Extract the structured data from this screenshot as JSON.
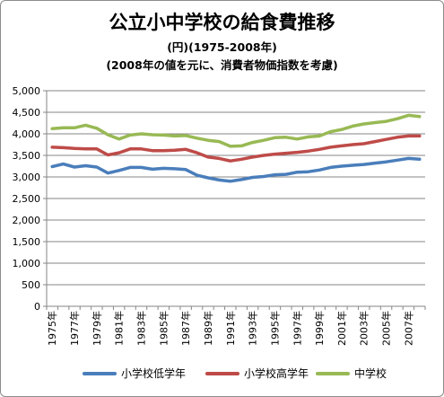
{
  "title": "公立小中学校の給食費推移",
  "subtitle_1": "(円)(1975-2008年)",
  "subtitle_2": "(2008年の値を元に、消費者物価指数を考慮)",
  "chart_data": {
    "type": "line",
    "title": "公立小中学校の給食費推移",
    "ylim": [
      0,
      5000
    ],
    "y_ticks": [
      "0",
      "500",
      "1,000",
      "1,500",
      "2,000",
      "2,500",
      "3,000",
      "3,500",
      "4,000",
      "4,500",
      "5,000"
    ],
    "grid": true,
    "legend_position": "bottom",
    "x": [
      "1975年",
      "1976年",
      "1977年",
      "1978年",
      "1979年",
      "1980年",
      "1981年",
      "1982年",
      "1983年",
      "1984年",
      "1985年",
      "1986年",
      "1987年",
      "1988年",
      "1989年",
      "1990年",
      "1991年",
      "1992年",
      "1993年",
      "1994年",
      "1995年",
      "1996年",
      "1997年",
      "1998年",
      "1999年",
      "2000年",
      "2001年",
      "2002年",
      "2003年",
      "2004年",
      "2005年",
      "2006年",
      "2007年",
      "2008年"
    ],
    "x_tick_labels": [
      "1975年",
      "1977年",
      "1979年",
      "1981年",
      "1983年",
      "1985年",
      "1987年",
      "1989年",
      "1991年",
      "1993年",
      "1995年",
      "1997年",
      "1999年",
      "2001年",
      "2003年",
      "2005年",
      "2007年"
    ],
    "series": [
      {
        "name": "小学校低学年",
        "color": "#4a7ebb",
        "values": [
          3240,
          3300,
          3230,
          3260,
          3230,
          3090,
          3150,
          3220,
          3220,
          3180,
          3200,
          3190,
          3170,
          3040,
          2980,
          2930,
          2900,
          2940,
          2990,
          3010,
          3050,
          3060,
          3110,
          3120,
          3160,
          3220,
          3250,
          3270,
          3290,
          3320,
          3350,
          3390,
          3430,
          3410
        ]
      },
      {
        "name": "小学校高学年",
        "color": "#be4b48",
        "values": [
          3690,
          3680,
          3660,
          3650,
          3650,
          3510,
          3560,
          3650,
          3650,
          3610,
          3610,
          3620,
          3640,
          3560,
          3460,
          3430,
          3370,
          3410,
          3460,
          3500,
          3530,
          3550,
          3570,
          3600,
          3640,
          3690,
          3720,
          3750,
          3770,
          3820,
          3870,
          3920,
          3950,
          3950
        ]
      },
      {
        "name": "中学校",
        "color": "#98b954",
        "values": [
          4120,
          4140,
          4140,
          4200,
          4130,
          3980,
          3880,
          3970,
          4000,
          3980,
          3970,
          3950,
          3960,
          3900,
          3850,
          3820,
          3710,
          3720,
          3800,
          3850,
          3910,
          3920,
          3880,
          3930,
          3950,
          4050,
          4100,
          4180,
          4230,
          4260,
          4290,
          4350,
          4430,
          4400
        ]
      }
    ]
  }
}
